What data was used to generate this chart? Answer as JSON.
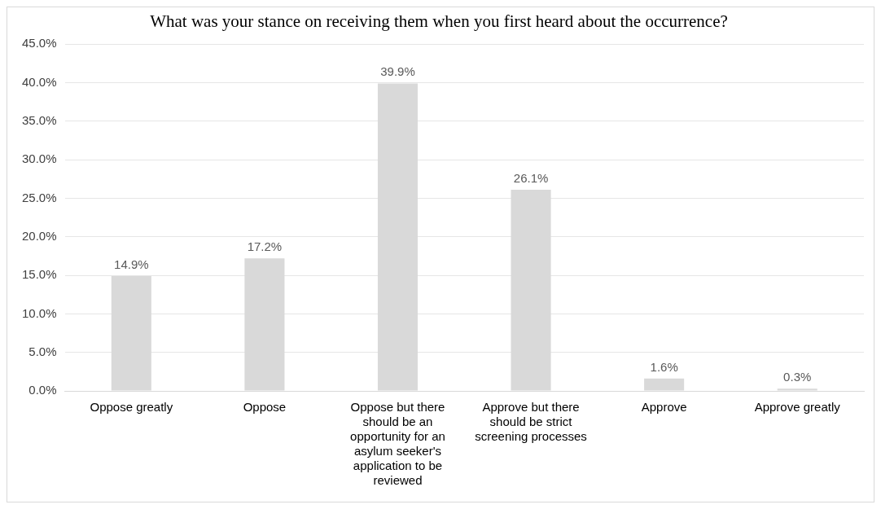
{
  "chart_data": {
    "type": "bar",
    "title": "What was your stance on receiving them when you first heard about the occurrence?",
    "categories": [
      "Oppose greatly",
      "Oppose",
      "Oppose but there should be an opportunity for an asylum seeker's application to be reviewed",
      "Approve but there should be strict screening processes",
      "Approve",
      "Approve greatly"
    ],
    "values": [
      14.9,
      17.2,
      39.9,
      26.1,
      1.6,
      0.3
    ],
    "value_labels": [
      "14.9%",
      "17.2%",
      "39.9%",
      "26.1%",
      "1.6%",
      "0.3%"
    ],
    "color": "#d9d9d9",
    "ylim": [
      0,
      45
    ],
    "yticks": [
      {
        "value": 0,
        "label": "0.0%"
      },
      {
        "value": 5,
        "label": "5.0%"
      },
      {
        "value": 10,
        "label": "10.0%"
      },
      {
        "value": 15,
        "label": "15.0%"
      },
      {
        "value": 20,
        "label": "20.0%"
      },
      {
        "value": 25,
        "label": "25.0%"
      },
      {
        "value": 30,
        "label": "30.0%"
      },
      {
        "value": 35,
        "label": "35.0%"
      },
      {
        "value": 40,
        "label": "40.0%"
      },
      {
        "value": 45,
        "label": "45.0%"
      }
    ],
    "grid": "y",
    "legend": false
  }
}
